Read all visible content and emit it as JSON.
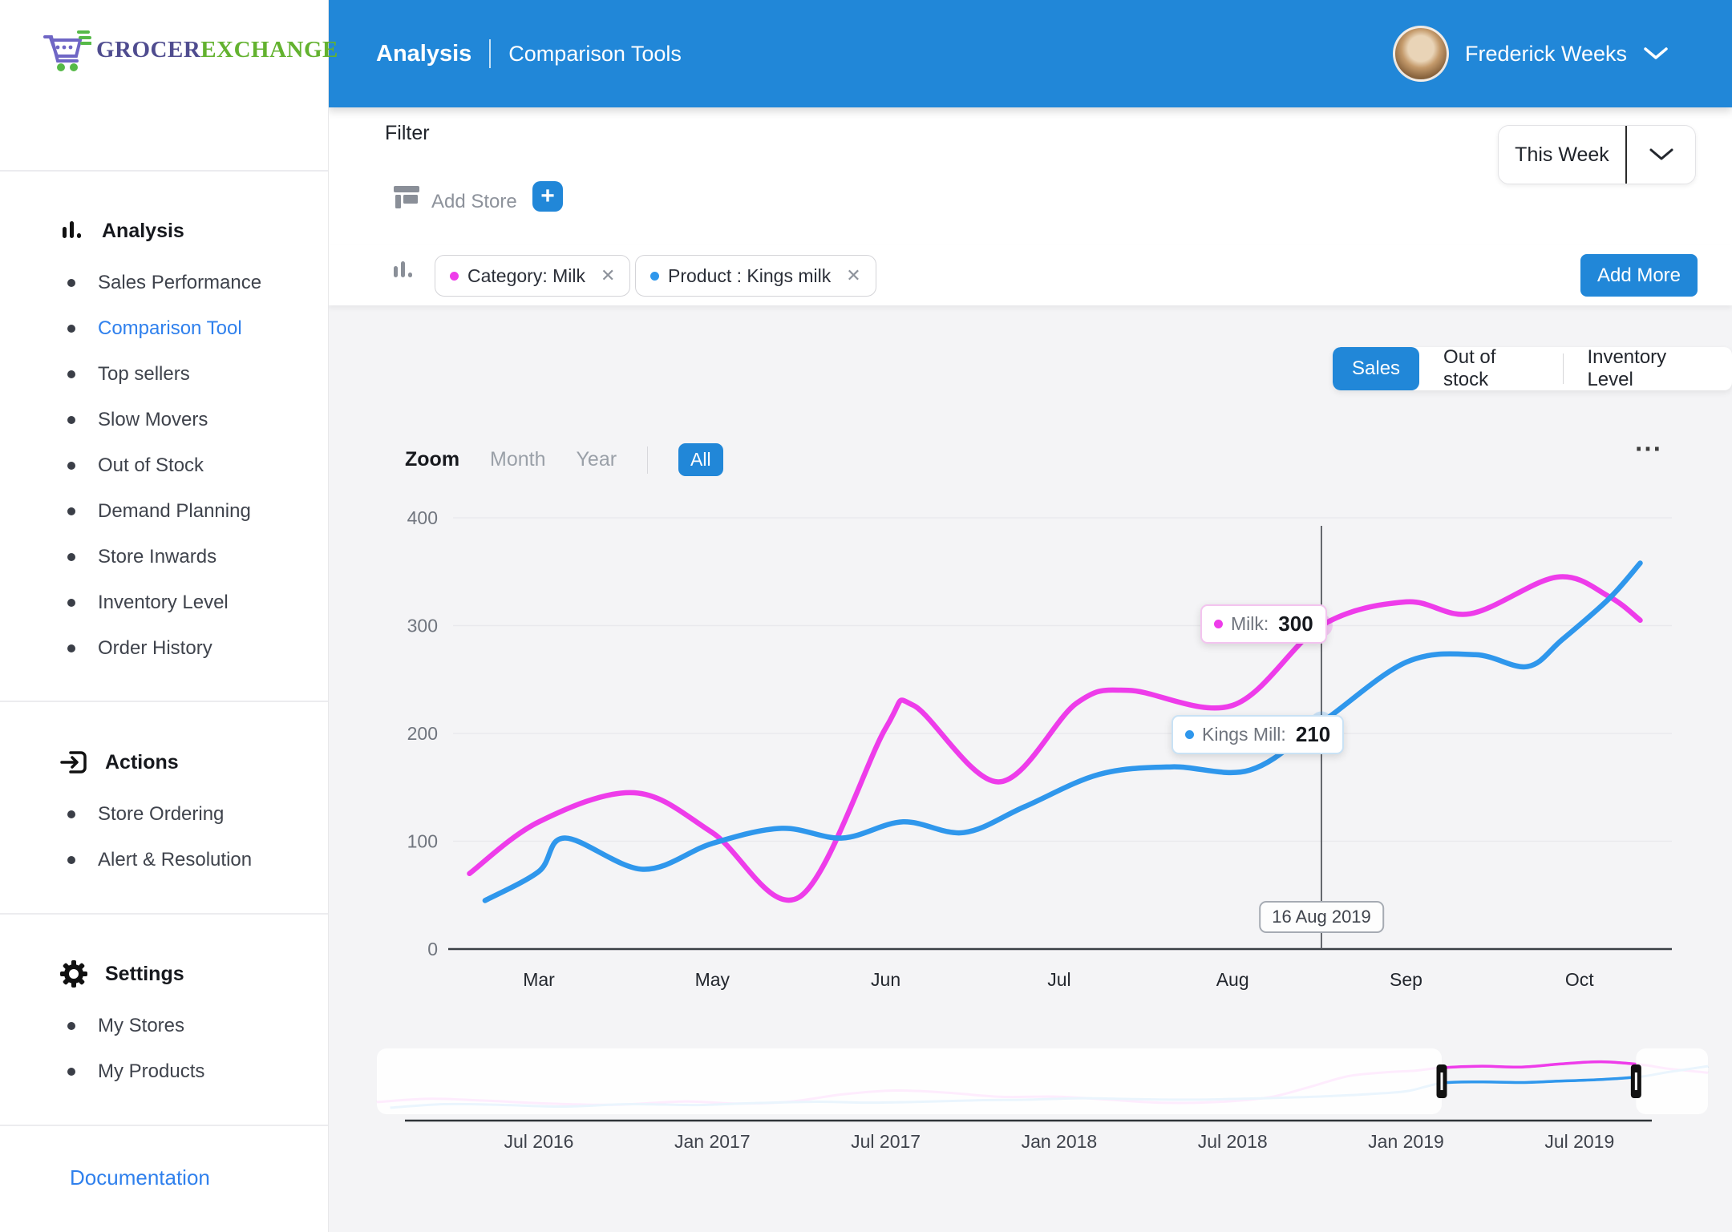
{
  "brand": {
    "primary": "GROCER",
    "secondary": "EXCHANGE"
  },
  "header": {
    "title": "Analysis",
    "subtitle": "Comparison Tools",
    "user_name": "Frederick Weeks"
  },
  "sidebar": {
    "sections": [
      {
        "title": "Analysis",
        "icon": "bar-chart-icon",
        "items": [
          "Sales Performance",
          "Comparison Tool",
          "Top sellers",
          "Slow Movers",
          "Out of Stock",
          "Demand Planning",
          "Store Inwards",
          "Inventory Level",
          "Order History"
        ],
        "active_item": "Comparison Tool"
      },
      {
        "title": "Actions",
        "icon": "actions-icon",
        "items": [
          "Store Ordering",
          "Alert & Resolution"
        ]
      },
      {
        "title": "Settings",
        "icon": "gear-icon",
        "items": [
          "My Stores",
          "My Products"
        ]
      }
    ],
    "documentation": "Documentation"
  },
  "filter": {
    "label": "Filter",
    "add_store": "Add Store",
    "period": "This Week"
  },
  "filters_bar": {
    "chips": [
      {
        "label": "Category: Milk",
        "color": "#ee3cea"
      },
      {
        "label": "Product : Kings milk",
        "color": "#2f97ec"
      }
    ],
    "add_more": "Add More"
  },
  "view_tabs": [
    "Sales",
    "Out of stock",
    "Inventory Level"
  ],
  "active_tab": "Sales",
  "zoom_bar": {
    "label": "Zoom",
    "month": "Month",
    "year": "Year",
    "all": "All"
  },
  "menu": {
    "ellipsis": "⋯"
  },
  "tooltip_milk": {
    "name": "Milk:",
    "value": "300"
  },
  "tooltip_kings": {
    "name": "Kings Mill:",
    "value": "210"
  },
  "crosshair_date": "16 Aug 2019",
  "colors": {
    "accent_blue": "#2187d8",
    "link_blue": "#2f80ed",
    "milk": "#ee3cea",
    "kings": "#2f97ec"
  },
  "chart_data": {
    "type": "line",
    "title": "",
    "x_axis": {
      "labels": [
        "Mar",
        "May",
        "Jun",
        "Jul",
        "Aug",
        "Sep",
        "Oct"
      ],
      "unit": "category index, Mar=0 ... Oct=6, fractional positions allowed"
    },
    "y_axis": {
      "ticks": [
        0,
        100,
        200,
        300,
        400
      ],
      "range": [
        0,
        400
      ]
    },
    "grid": true,
    "legend": "none",
    "series": [
      {
        "name": "Milk",
        "color": "#ee3cea",
        "points": [
          [
            -0.4,
            70
          ],
          [
            0,
            118
          ],
          [
            0.55,
            145
          ],
          [
            1.0,
            108
          ],
          [
            1.5,
            48
          ],
          [
            2.0,
            205
          ],
          [
            2.16,
            226
          ],
          [
            2.65,
            155
          ],
          [
            3.1,
            228
          ],
          [
            3.4,
            240
          ],
          [
            4.0,
            226
          ],
          [
            4.512,
            300
          ],
          [
            5.0,
            322
          ],
          [
            5.37,
            311
          ],
          [
            5.87,
            345
          ],
          [
            6.17,
            327
          ],
          [
            6.35,
            305
          ]
        ]
      },
      {
        "name": "Kings Mill",
        "color": "#2f97ec",
        "points": [
          [
            -0.31,
            45
          ],
          [
            0,
            72
          ],
          [
            0.15,
            103
          ],
          [
            0.6,
            74
          ],
          [
            1.0,
            98
          ],
          [
            1.4,
            112
          ],
          [
            1.75,
            103
          ],
          [
            2.1,
            118
          ],
          [
            2.45,
            108
          ],
          [
            2.8,
            132
          ],
          [
            3.23,
            162
          ],
          [
            3.65,
            169
          ],
          [
            4.1,
            166
          ],
          [
            4.512,
            210
          ],
          [
            5.0,
            266
          ],
          [
            5.4,
            273
          ],
          [
            5.7,
            262
          ],
          [
            5.9,
            287
          ],
          [
            6.17,
            325
          ],
          [
            6.35,
            358
          ]
        ]
      }
    ],
    "crosshair": {
      "x_index": 4.512,
      "date": "16 Aug 2019",
      "markers": [
        {
          "series": "Milk",
          "value": 300
        },
        {
          "series": "Kings Mill",
          "value": 210
        }
      ]
    },
    "navigator": {
      "labels": [
        "Jul 2016",
        "Jan 2017",
        "Jul 2017",
        "Jan 2018",
        "Jul 2018",
        "Jan 2019",
        "Jul 2019"
      ],
      "selected_range": [
        0.8,
        0.946
      ],
      "series": [
        {
          "name": "Milk",
          "color": "#ee3cea",
          "points": [
            [
              0,
              60
            ],
            [
              0.04,
              82
            ],
            [
              0.08,
              70
            ],
            [
              0.13,
              50
            ],
            [
              0.18,
              42
            ],
            [
              0.23,
              64
            ],
            [
              0.27,
              50
            ],
            [
              0.31,
              62
            ],
            [
              0.35,
              112
            ],
            [
              0.39,
              138
            ],
            [
              0.43,
              122
            ],
            [
              0.47,
              95
            ],
            [
              0.51,
              97
            ],
            [
              0.55,
              76
            ],
            [
              0.59,
              55
            ],
            [
              0.63,
              60
            ],
            [
              0.67,
              92
            ],
            [
              0.7,
              160
            ],
            [
              0.73,
              235
            ],
            [
              0.76,
              262
            ],
            [
              0.78,
              272
            ],
            [
              0.8,
              292
            ],
            [
              0.83,
              302
            ],
            [
              0.86,
              296
            ],
            [
              0.89,
              318
            ],
            [
              0.92,
              332
            ],
            [
              0.95,
              312
            ],
            [
              0.97,
              285
            ],
            [
              1.0,
              258
            ]
          ]
        },
        {
          "name": "Kings Mill",
          "color": "#2f97ec",
          "points": [
            [
              0.01,
              22
            ],
            [
              0.05,
              46
            ],
            [
              0.09,
              42
            ],
            [
              0.14,
              30
            ],
            [
              0.19,
              46
            ],
            [
              0.24,
              40
            ],
            [
              0.28,
              52
            ],
            [
              0.33,
              62
            ],
            [
              0.37,
              56
            ],
            [
              0.41,
              62
            ],
            [
              0.45,
              72
            ],
            [
              0.49,
              76
            ],
            [
              0.53,
              86
            ],
            [
              0.57,
              80
            ],
            [
              0.61,
              76
            ],
            [
              0.65,
              82
            ],
            [
              0.69,
              92
            ],
            [
              0.72,
              102
            ],
            [
              0.75,
              116
            ],
            [
              0.775,
              135
            ],
            [
              0.8,
              188
            ],
            [
              0.83,
              196
            ],
            [
              0.86,
              192
            ],
            [
              0.89,
              202
            ],
            [
              0.92,
              212
            ],
            [
              0.95,
              232
            ],
            [
              0.97,
              262
            ],
            [
              1.0,
              302
            ]
          ]
        }
      ]
    }
  }
}
